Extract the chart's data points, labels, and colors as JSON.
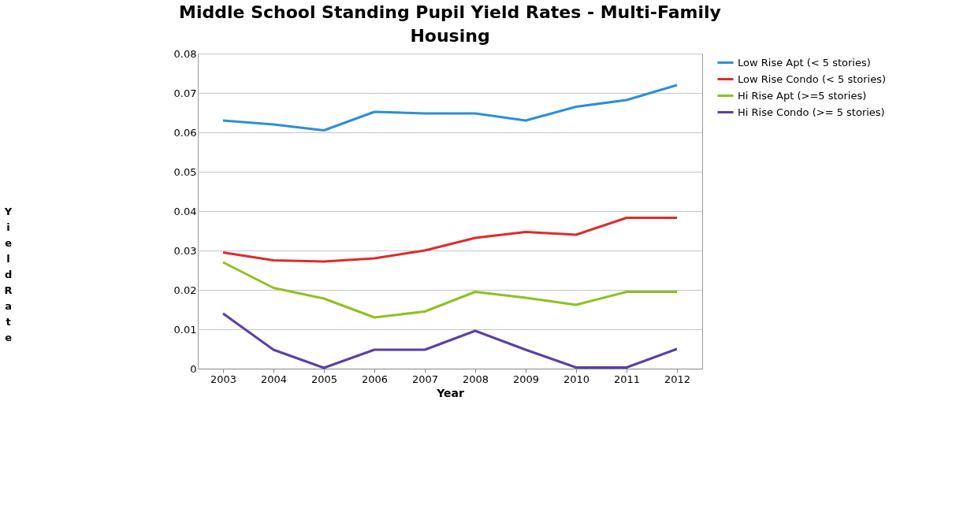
{
  "chart_data": {
    "type": "line",
    "title": "Middle School Standing Pupil Yield Rates - Multi-Family Housing",
    "xlabel": "Year",
    "ylabel": "Yield Rate",
    "categories": [
      "2003",
      "2004",
      "2005",
      "2006",
      "2007",
      "2008",
      "2009",
      "2010",
      "2011",
      "2012"
    ],
    "ylim": [
      0,
      0.08
    ],
    "yticks": [
      0,
      0.01,
      0.02,
      0.03,
      0.04,
      0.05,
      0.06,
      0.07,
      0.08
    ],
    "grid": "y",
    "legend": "right",
    "marker": "none",
    "line_style": "solid",
    "series": [
      {
        "name": "Low Rise Apt (< 5 stories)",
        "color": "#2b8fd8",
        "values": [
          0.063,
          0.062,
          0.0605,
          0.0652,
          0.0648,
          0.0648,
          0.063,
          0.0665,
          0.0682,
          0.072
        ]
      },
      {
        "name": "Low Rise Condo (< 5 stories)",
        "color": "#e02a2a",
        "values": [
          0.0295,
          0.0275,
          0.0272,
          0.028,
          0.03,
          0.0332,
          0.0347,
          0.034,
          0.0383,
          0.0383
        ]
      },
      {
        "name": "Hi Rise Apt (>=5 stories)",
        "color": "#8cc21e",
        "values": [
          0.027,
          0.0205,
          0.0178,
          0.013,
          0.0145,
          0.0195,
          0.018,
          0.0162,
          0.0195,
          0.0195
        ]
      },
      {
        "name": "Hi Rise Condo (>= 5 stories)",
        "color": "#5a3fa6",
        "values": [
          0.014,
          0.0048,
          0.0002,
          0.0048,
          0.0048,
          0.0096,
          0.0048,
          0.0003,
          0.0003,
          0.005
        ]
      }
    ]
  }
}
